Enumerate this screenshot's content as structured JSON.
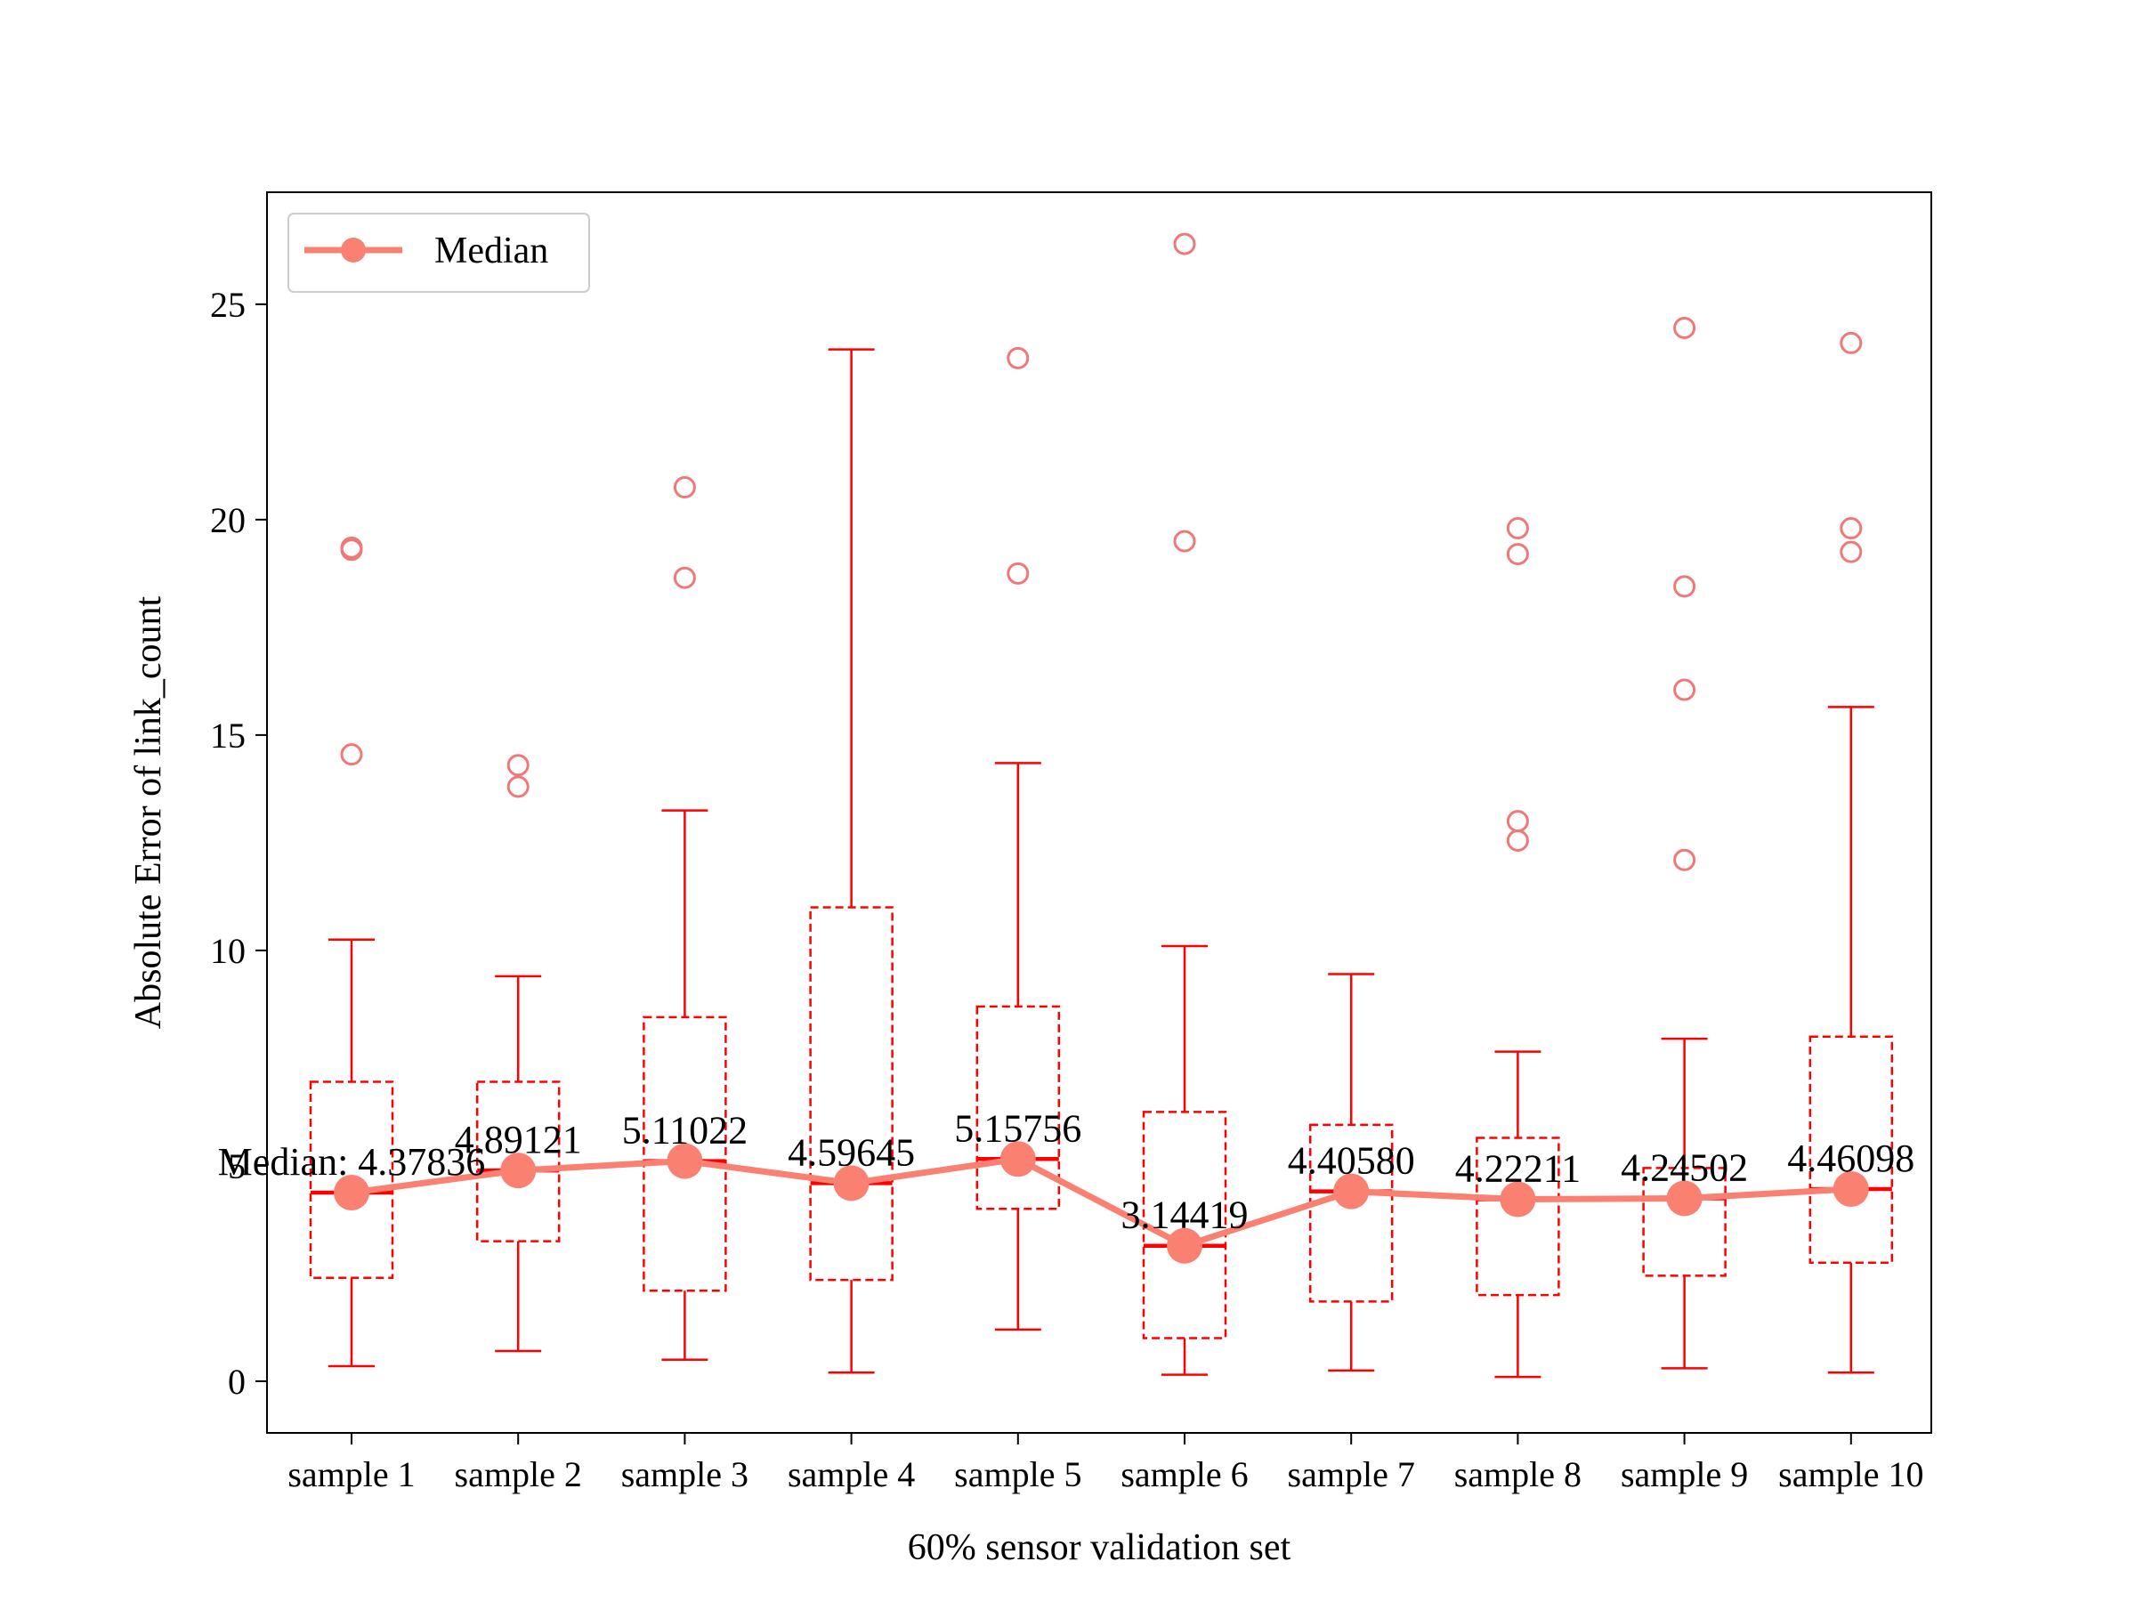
{
  "chart_data": {
    "type": "box",
    "xlabel": "60% sensor validation set",
    "ylabel": "Absolute Error of link_count",
    "categories": [
      "sample 1",
      "sample 2",
      "sample 3",
      "sample 4",
      "sample 5",
      "sample 6",
      "sample 7",
      "sample 8",
      "sample 9",
      "sample 10"
    ],
    "ylim": [
      -1.2,
      27.6
    ],
    "yticks": [
      0,
      5,
      10,
      15,
      20,
      25
    ],
    "grid": false,
    "legend": {
      "position": "top-left",
      "entries": [
        "Median"
      ]
    },
    "colors": {
      "box": "#ff0000",
      "median_line": "#fa8072",
      "outlier": "#f07878"
    },
    "boxes": [
      {
        "name": "sample 1",
        "whisker_low": 0.35,
        "q1": 2.4,
        "median": 4.37836,
        "q3": 6.95,
        "whisker_high": 10.25,
        "outliers": [
          14.55,
          19.3,
          19.35
        ]
      },
      {
        "name": "sample 2",
        "whisker_low": 0.7,
        "q1": 3.25,
        "median": 4.89121,
        "q3": 6.95,
        "whisker_high": 9.4,
        "outliers": [
          13.8,
          14.3
        ]
      },
      {
        "name": "sample 3",
        "whisker_low": 0.5,
        "q1": 2.1,
        "median": 5.11022,
        "q3": 8.45,
        "whisker_high": 13.25,
        "outliers": [
          18.65,
          20.75
        ]
      },
      {
        "name": "sample 4",
        "whisker_low": 0.2,
        "q1": 2.35,
        "median": 4.59645,
        "q3": 11.0,
        "whisker_high": 23.95,
        "outliers": []
      },
      {
        "name": "sample 5",
        "whisker_low": 1.2,
        "q1": 4.0,
        "median": 5.15756,
        "q3": 8.7,
        "whisker_high": 14.35,
        "outliers": [
          18.75,
          23.75
        ]
      },
      {
        "name": "sample 6",
        "whisker_low": 0.15,
        "q1": 1.0,
        "median": 3.14419,
        "q3": 6.25,
        "whisker_high": 10.1,
        "outliers": [
          19.5,
          26.4
        ]
      },
      {
        "name": "sample 7",
        "whisker_low": 0.25,
        "q1": 1.85,
        "median": 4.4058,
        "q3": 5.95,
        "whisker_high": 9.45,
        "outliers": []
      },
      {
        "name": "sample 8",
        "whisker_low": 0.1,
        "q1": 2.0,
        "median": 4.22211,
        "q3": 5.65,
        "whisker_high": 7.65,
        "outliers": [
          12.55,
          13.0,
          19.2,
          19.8
        ]
      },
      {
        "name": "sample 9",
        "whisker_low": 0.3,
        "q1": 2.45,
        "median": 4.24502,
        "q3": 4.95,
        "whisker_high": 7.95,
        "outliers": [
          12.1,
          16.05,
          18.45,
          24.45
        ]
      },
      {
        "name": "sample 10",
        "whisker_low": 0.2,
        "q1": 2.75,
        "median": 4.46098,
        "q3": 8.0,
        "whisker_high": 15.65,
        "outliers": [
          19.25,
          19.8,
          24.1
        ]
      }
    ],
    "series": [
      {
        "name": "Median",
        "values": [
          4.37836,
          4.89121,
          5.11022,
          4.59645,
          5.15756,
          3.14419,
          4.4058,
          4.22211,
          4.24502,
          4.46098
        ]
      }
    ],
    "annotations": [
      "Median: 4.37836",
      "4.89121",
      "5.11022",
      "4.59645",
      "5.15756",
      "3.14419",
      "4.40580",
      "4.22211",
      "4.24502",
      "4.46098"
    ]
  }
}
